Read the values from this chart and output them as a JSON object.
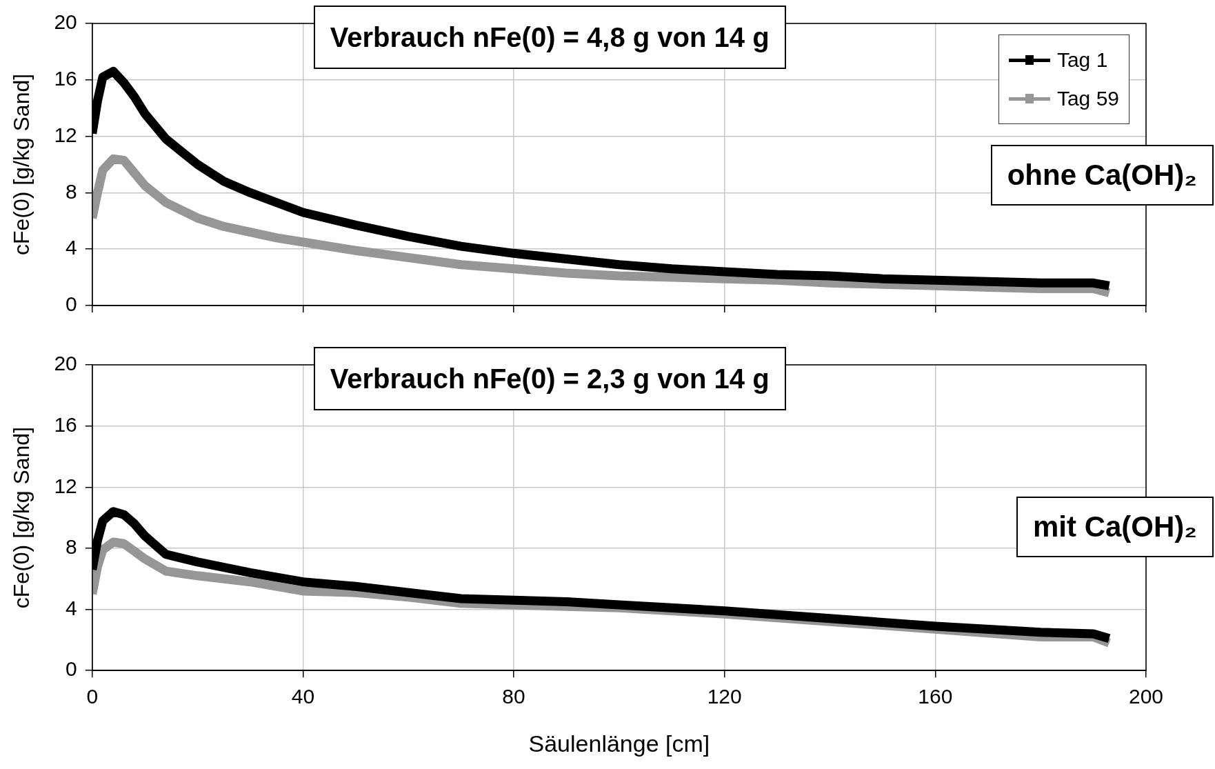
{
  "chart_data": [
    {
      "type": "line",
      "ylabel": "cFe(0) [g/kg Sand]",
      "annotations": [
        "Verbrauch nFe(0) = 4,8 g von 14 g",
        "ohne Ca(OH)₂"
      ],
      "x": [
        0,
        1,
        2,
        4,
        6,
        8,
        10,
        14,
        20,
        25,
        30,
        35,
        40,
        50,
        60,
        70,
        80,
        90,
        100,
        110,
        120,
        130,
        140,
        150,
        160,
        170,
        180,
        190,
        193
      ],
      "series": [
        {
          "name": "Tag 1",
          "color": "#000000",
          "values": [
            12.2,
            14.5,
            16.2,
            16.6,
            15.8,
            14.8,
            13.6,
            11.8,
            10,
            8.8,
            8,
            7.3,
            6.6,
            5.7,
            4.9,
            4.2,
            3.7,
            3.3,
            2.9,
            2.6,
            2.4,
            2.2,
            2.1,
            1.9,
            1.8,
            1.7,
            1.6,
            1.6,
            1.4
          ]
        },
        {
          "name": "Tag 59",
          "color": "#969696",
          "values": [
            6.2,
            8,
            9.6,
            10.4,
            10.3,
            9.4,
            8.5,
            7.3,
            6.2,
            5.6,
            5.2,
            4.8,
            4.5,
            3.9,
            3.4,
            2.9,
            2.6,
            2.3,
            2.1,
            2,
            1.9,
            1.8,
            1.6,
            1.5,
            1.4,
            1.3,
            1.2,
            1.2,
            0.9
          ]
        }
      ],
      "xlim": [
        0,
        200
      ],
      "xticks": [
        0,
        40,
        80,
        120,
        160,
        200
      ],
      "ylim": [
        0,
        20
      ],
      "yticks": [
        0,
        4,
        8,
        12,
        16,
        20
      ],
      "grid": true,
      "legend": "top right",
      "tick_labels": "y",
      "line_style": "solid"
    },
    {
      "type": "line",
      "xlabel": "Säulenlänge [cm]",
      "ylabel": "cFe(0) [g/kg Sand]",
      "annotations": [
        "Verbrauch nFe(0) = 2,3 g von 14 g",
        "mit Ca(OH)₂"
      ],
      "x": [
        0,
        1,
        2,
        4,
        6,
        8,
        10,
        14,
        20,
        30,
        40,
        50,
        60,
        70,
        80,
        90,
        100,
        120,
        140,
        160,
        180,
        190,
        193
      ],
      "series": [
        {
          "color": "#000000",
          "values": [
            6.6,
            8.5,
            9.8,
            10.4,
            10.2,
            9.6,
            8.8,
            7.6,
            7.1,
            6.4,
            5.8,
            5.5,
            5.1,
            4.7,
            4.6,
            4.5,
            4.3,
            3.9,
            3.4,
            2.9,
            2.5,
            2.4,
            2.1
          ]
        },
        {
          "color": "#969696",
          "values": [
            5,
            6.8,
            7.9,
            8.4,
            8.3,
            7.8,
            7.3,
            6.5,
            6.2,
            5.8,
            5.2,
            5.1,
            4.8,
            4.4,
            4.3,
            4.2,
            4.1,
            3.7,
            3.2,
            2.7,
            2.2,
            2.2,
            1.8
          ]
        }
      ],
      "xlim": [
        0,
        200
      ],
      "xticks": [
        0,
        40,
        80,
        120,
        160,
        200
      ],
      "ylim": [
        0,
        20
      ],
      "yticks": [
        0,
        4,
        8,
        12,
        16,
        20
      ],
      "grid": true,
      "line_style": "solid"
    }
  ]
}
